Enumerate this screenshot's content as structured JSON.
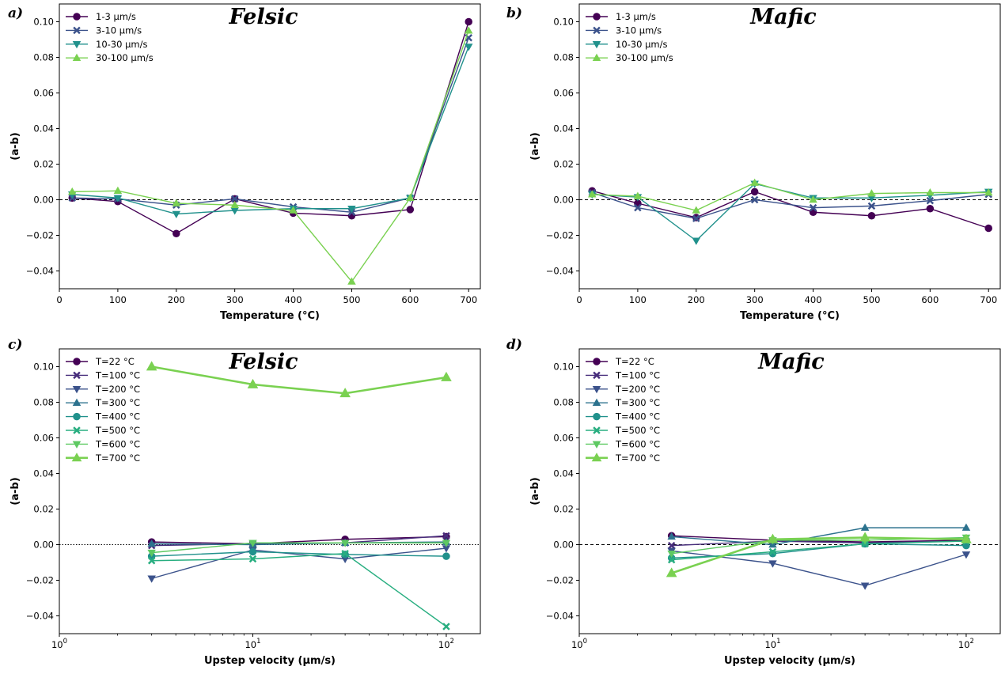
{
  "chart_data": [
    {
      "panel": "a)",
      "type": "line",
      "title": "Felsic",
      "xlabel": "Temperature (°C)",
      "ylabel": "(a-b)",
      "xscale": "linear",
      "xlim": [
        0,
        720
      ],
      "ylim": [
        -0.05,
        0.11
      ],
      "xticks": [
        0,
        100,
        200,
        300,
        400,
        500,
        600,
        700
      ],
      "xtick_labels": [
        "0",
        "100",
        "200",
        "300",
        "400",
        "500",
        "600",
        "700"
      ],
      "yticks": [
        -0.04,
        -0.02,
        0.0,
        0.02,
        0.04,
        0.06,
        0.08,
        0.1
      ],
      "ytick_labels": [
        "−0.04",
        "−0.02",
        "0.00",
        "0.02",
        "0.04",
        "0.06",
        "0.08",
        "0.10"
      ],
      "zero_line": "dashed",
      "legend_position": "top-left",
      "x": [
        22,
        100,
        200,
        300,
        400,
        500,
        600,
        700
      ],
      "series": [
        {
          "name": "1-3 μm/s",
          "marker": "circle",
          "color": "#440154",
          "values": [
            0.001,
            -0.001,
            -0.019,
            0.0005,
            -0.0075,
            -0.009,
            -0.0055,
            0.1
          ]
        },
        {
          "name": "3-10 μm/s",
          "marker": "x",
          "color": "#3b528b",
          "values": [
            0.001,
            0.0005,
            -0.003,
            0.0005,
            -0.004,
            -0.007,
            0.001,
            0.091
          ]
        },
        {
          "name": "10-30 μm/s",
          "marker": "triangle-down",
          "color": "#21918c",
          "values": [
            0.003,
            0.001,
            -0.008,
            -0.006,
            -0.005,
            -0.005,
            0.001,
            0.086
          ]
        },
        {
          "name": "30-100 μm/s",
          "marker": "triangle-up",
          "color": "#7ad151",
          "values": [
            0.0045,
            0.005,
            -0.002,
            -0.003,
            -0.006,
            -0.046,
            0.001,
            0.095
          ]
        }
      ]
    },
    {
      "panel": "b)",
      "type": "line",
      "title": "Mafic",
      "xlabel": "Temperature (°C)",
      "ylabel": "(a-b)",
      "xscale": "linear",
      "xlim": [
        0,
        720
      ],
      "ylim": [
        -0.05,
        0.11
      ],
      "xticks": [
        0,
        100,
        200,
        300,
        400,
        500,
        600,
        700
      ],
      "xtick_labels": [
        "0",
        "100",
        "200",
        "300",
        "400",
        "500",
        "600",
        "700"
      ],
      "yticks": [
        -0.04,
        -0.02,
        0.0,
        0.02,
        0.04,
        0.06,
        0.08,
        0.1
      ],
      "ytick_labels": [
        "−0.04",
        "−0.02",
        "0.00",
        "0.02",
        "0.04",
        "0.06",
        "0.08",
        "0.10"
      ],
      "zero_line": "dashed",
      "legend_position": "top-left",
      "x": [
        22,
        100,
        200,
        300,
        400,
        500,
        600,
        700
      ],
      "series": [
        {
          "name": "1-3 μm/s",
          "marker": "circle",
          "color": "#440154",
          "values": [
            0.005,
            -0.002,
            -0.01,
            0.0045,
            -0.007,
            -0.009,
            -0.005,
            -0.016
          ]
        },
        {
          "name": "3-10 μm/s",
          "marker": "x",
          "color": "#3b528b",
          "values": [
            0.004,
            -0.0045,
            -0.0105,
            0.0,
            -0.0045,
            -0.0035,
            -0.0005,
            0.003
          ]
        },
        {
          "name": "10-30 μm/s",
          "marker": "triangle-down",
          "color": "#21918c",
          "values": [
            0.003,
            0.0015,
            -0.023,
            0.009,
            0.001,
            0.001,
            0.0025,
            0.0045
          ]
        },
        {
          "name": "30-100 μm/s",
          "marker": "triangle-up",
          "color": "#7ad151",
          "values": [
            0.003,
            0.002,
            -0.006,
            0.0095,
            0.0,
            0.0035,
            0.004,
            0.004
          ]
        }
      ]
    },
    {
      "panel": "c)",
      "type": "line",
      "title": "Felsic",
      "xlabel": "Upstep velocity (μm/s)",
      "ylabel": "(a-b)",
      "xscale": "log",
      "xlim": [
        1,
        150
      ],
      "ylim": [
        -0.05,
        0.11
      ],
      "xticks": [
        1,
        10,
        100
      ],
      "xtick_labels": [
        {
          "base": "10",
          "exp": "0"
        },
        {
          "base": "10",
          "exp": "1"
        },
        {
          "base": "10",
          "exp": "2"
        }
      ],
      "yticks": [
        -0.04,
        -0.02,
        0.0,
        0.02,
        0.04,
        0.06,
        0.08,
        0.1
      ],
      "ytick_labels": [
        "−0.04",
        "−0.02",
        "0.00",
        "0.02",
        "0.04",
        "0.06",
        "0.08",
        "0.10"
      ],
      "zero_line": "dotted",
      "legend_position": "top-left",
      "x": [
        3,
        10,
        30,
        100
      ],
      "series": [
        {
          "name": "T=22 °C",
          "marker": "circle",
          "color": "#440154",
          "values": [
            0.0015,
            0.0005,
            0.003,
            0.0045
          ]
        },
        {
          "name": "T=100 °C",
          "marker": "x",
          "color": "#472d7b",
          "values": [
            -0.0005,
            0.0005,
            0.001,
            0.005
          ]
        },
        {
          "name": "T=200 °C",
          "marker": "triangle-down",
          "color": "#3b528b",
          "values": [
            -0.019,
            -0.003,
            -0.008,
            -0.002
          ]
        },
        {
          "name": "T=300 °C",
          "marker": "triangle-up",
          "color": "#2c728e",
          "values": [
            0.0005,
            0.0,
            0.001,
            0.0015
          ]
        },
        {
          "name": "T=400 °C",
          "marker": "circle",
          "color": "#21918c",
          "values": [
            -0.0065,
            -0.004,
            -0.0055,
            -0.0065
          ]
        },
        {
          "name": "T=500 °C",
          "marker": "x",
          "color": "#28ae80",
          "values": [
            -0.009,
            -0.008,
            -0.005,
            -0.046
          ]
        },
        {
          "name": "T=600 °C",
          "marker": "triangle-down",
          "color": "#5ec962",
          "values": [
            -0.0045,
            0.001,
            0.001,
            0.001
          ]
        },
        {
          "name": "T=700 °C",
          "marker": "triangle-up",
          "color": "#7ad151",
          "values": [
            0.1,
            0.09,
            0.085,
            0.094
          ]
        }
      ]
    },
    {
      "panel": "d)",
      "type": "line",
      "title": "Mafic",
      "xlabel": "Upstep velocity (μm/s)",
      "ylabel": "(a-b)",
      "xscale": "log",
      "xlim": [
        1,
        150
      ],
      "ylim": [
        -0.05,
        0.11
      ],
      "xticks": [
        1,
        10,
        100
      ],
      "xtick_labels": [
        {
          "base": "10",
          "exp": "0"
        },
        {
          "base": "10",
          "exp": "1"
        },
        {
          "base": "10",
          "exp": "2"
        }
      ],
      "yticks": [
        -0.04,
        -0.02,
        0.0,
        0.02,
        0.04,
        0.06,
        0.08,
        0.1
      ],
      "ytick_labels": [
        "−0.04",
        "−0.02",
        "0.00",
        "0.02",
        "0.04",
        "0.06",
        "0.08",
        "0.10"
      ],
      "zero_line": "dashed",
      "legend_position": "top-left",
      "x": [
        3,
        10,
        30,
        100
      ],
      "series": [
        {
          "name": "T=22 °C",
          "marker": "circle",
          "color": "#440154",
          "values": [
            0.005,
            0.0025,
            0.0015,
            0.0025
          ]
        },
        {
          "name": "T=100 °C",
          "marker": "x",
          "color": "#472d7b",
          "values": [
            -0.0005,
            0.002,
            0.001,
            0.002
          ]
        },
        {
          "name": "T=200 °C",
          "marker": "triangle-down",
          "color": "#3b528b",
          "values": [
            -0.0035,
            -0.0105,
            -0.023,
            -0.0055
          ]
        },
        {
          "name": "T=300 °C",
          "marker": "triangle-up",
          "color": "#2c728e",
          "values": [
            0.0045,
            0.0,
            0.0095,
            0.0095
          ]
        },
        {
          "name": "T=400 °C",
          "marker": "circle",
          "color": "#21918c",
          "values": [
            -0.0075,
            -0.005,
            0.0005,
            -0.0005
          ]
        },
        {
          "name": "T=500 °C",
          "marker": "x",
          "color": "#28ae80",
          "values": [
            -0.0085,
            -0.004,
            0.0005,
            0.002
          ]
        },
        {
          "name": "T=600 °C",
          "marker": "triangle-down",
          "color": "#5ec962",
          "values": [
            -0.005,
            0.0025,
            0.0025,
            0.004
          ]
        },
        {
          "name": "T=700 °C",
          "marker": "triangle-up",
          "color": "#7ad151",
          "values": [
            -0.016,
            0.003,
            0.004,
            0.003
          ]
        }
      ]
    }
  ]
}
